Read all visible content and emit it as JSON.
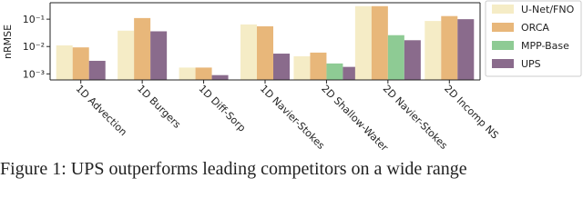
{
  "chart_data": {
    "type": "bar",
    "log_scale": true,
    "y_label": "nRMSE",
    "categories": [
      "1D Advection",
      "1D Burgers",
      "1D Diff-Sorp",
      "1D Navier-Stokes",
      "2D Shallow-Water",
      "2D Navier-Stokes",
      "2D Incomp NS"
    ],
    "series": [
      {
        "name": "U-Net/FNO",
        "color": "#f5ecc6",
        "values": [
          0.011,
          0.038,
          0.0017,
          0.064,
          0.0044,
          0.3,
          0.086
        ]
      },
      {
        "name": "ORCA",
        "color": "#e8b77a",
        "values": [
          0.0093,
          0.11,
          0.0017,
          0.055,
          0.006,
          0.3,
          0.13
        ]
      },
      {
        "name": "MPP-Base",
        "color": "#8ecb94",
        "values": [
          null,
          null,
          null,
          null,
          0.0024,
          0.026,
          null
        ]
      },
      {
        "name": "UPS",
        "color": "#8a6b8c",
        "values": [
          0.003,
          0.036,
          0.0009,
          0.0055,
          0.0018,
          0.017,
          0.1
        ]
      }
    ],
    "ylim": [
      0.0006,
      0.4
    ],
    "yticks": [
      {
        "value": 0.001,
        "label": "10⁻³"
      },
      {
        "value": 0.01,
        "label": "10⁻²"
      },
      {
        "value": 0.1,
        "label": "10⁻¹"
      }
    ],
    "legend_position": "right",
    "caption": "Figure 1: UPS outperforms leading competitors on a wide range"
  }
}
